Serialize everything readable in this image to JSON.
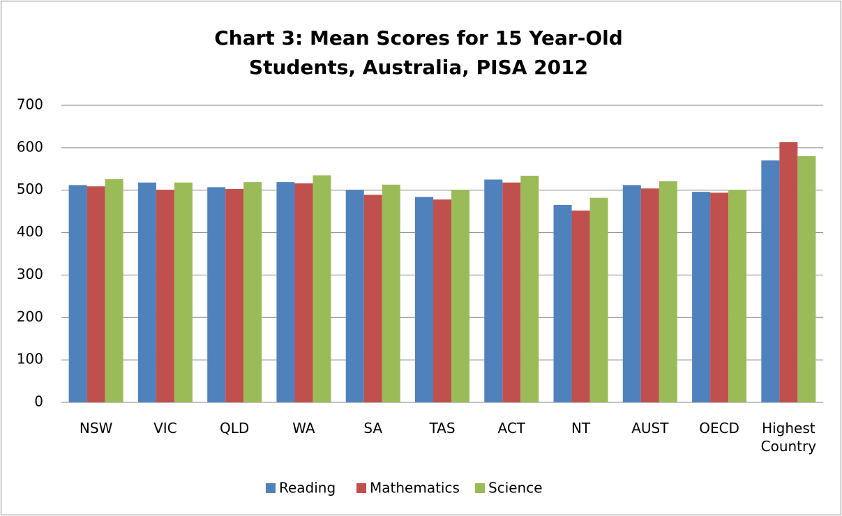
{
  "chart_data": {
    "type": "bar",
    "title": "Chart 3: Mean Scores for 15 Year-Old Students, Australia, PISA 2012",
    "categories": [
      "NSW",
      "VIC",
      "QLD",
      "WA",
      "SA",
      "TAS",
      "ACT",
      "NT",
      "AUST",
      "OECD",
      "Highest Country"
    ],
    "series": [
      {
        "name": "Reading",
        "color": "#4f81bd",
        "values": [
          512,
          518,
          507,
          519,
          501,
          484,
          525,
          465,
          512,
          496,
          570
        ]
      },
      {
        "name": "Mathematics",
        "color": "#c0504d",
        "values": [
          509,
          501,
          503,
          516,
          489,
          478,
          518,
          452,
          504,
          494,
          613
        ]
      },
      {
        "name": "Science",
        "color": "#9bbb59",
        "values": [
          526,
          518,
          519,
          535,
          513,
          501,
          534,
          482,
          521,
          501,
          580
        ]
      }
    ],
    "ylim": [
      0,
      700
    ],
    "yticks": [
      0,
      100,
      200,
      300,
      400,
      500,
      600,
      700
    ],
    "grid": true,
    "legend": "bottom"
  }
}
